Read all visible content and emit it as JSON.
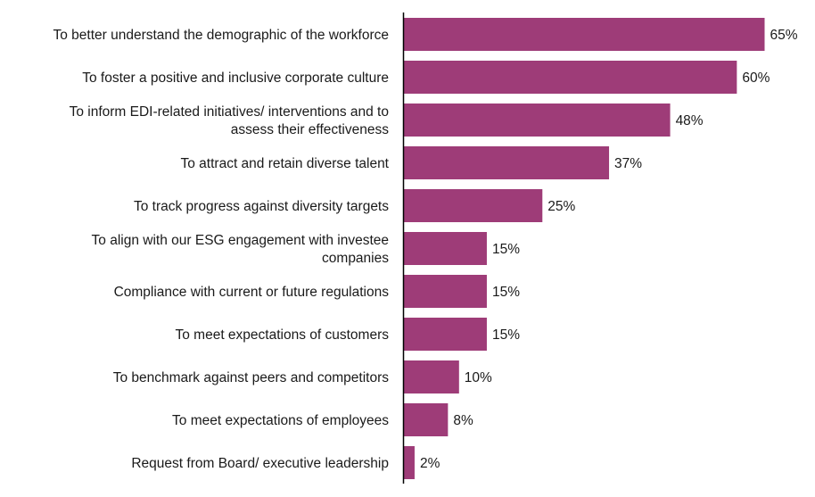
{
  "chart_data": {
    "type": "bar",
    "orientation": "horizontal",
    "title": "",
    "xlabel": "",
    "ylabel": "",
    "xlim": [
      0,
      70
    ],
    "grid": false,
    "legend": "none",
    "bar_color": "#9E3C78",
    "value_suffix": "%",
    "categories": [
      [
        "To better understand the demographic of the workforce"
      ],
      [
        "To foster a positive and inclusive corporate culture"
      ],
      [
        "To inform EDI-related initiatives/ interventions and to",
        "assess their effectiveness"
      ],
      [
        "To attract and retain diverse talent"
      ],
      [
        "To track progress against diversity targets"
      ],
      [
        "To align with our ESG engagement with investee",
        "companies"
      ],
      [
        "Compliance with current or future regulations"
      ],
      [
        "To meet expectations of customers"
      ],
      [
        "To benchmark against peers and competitors"
      ],
      [
        "To meet expectations of employees"
      ],
      [
        "Request from Board/ executive leadership"
      ]
    ],
    "values": [
      65,
      60,
      48,
      37,
      25,
      15,
      15,
      15,
      10,
      8,
      2
    ],
    "value_labels": [
      "65%",
      "60%",
      "48%",
      "37%",
      "25%",
      "15%",
      "15%",
      "15%",
      "10%",
      "8%",
      "2%"
    ]
  }
}
